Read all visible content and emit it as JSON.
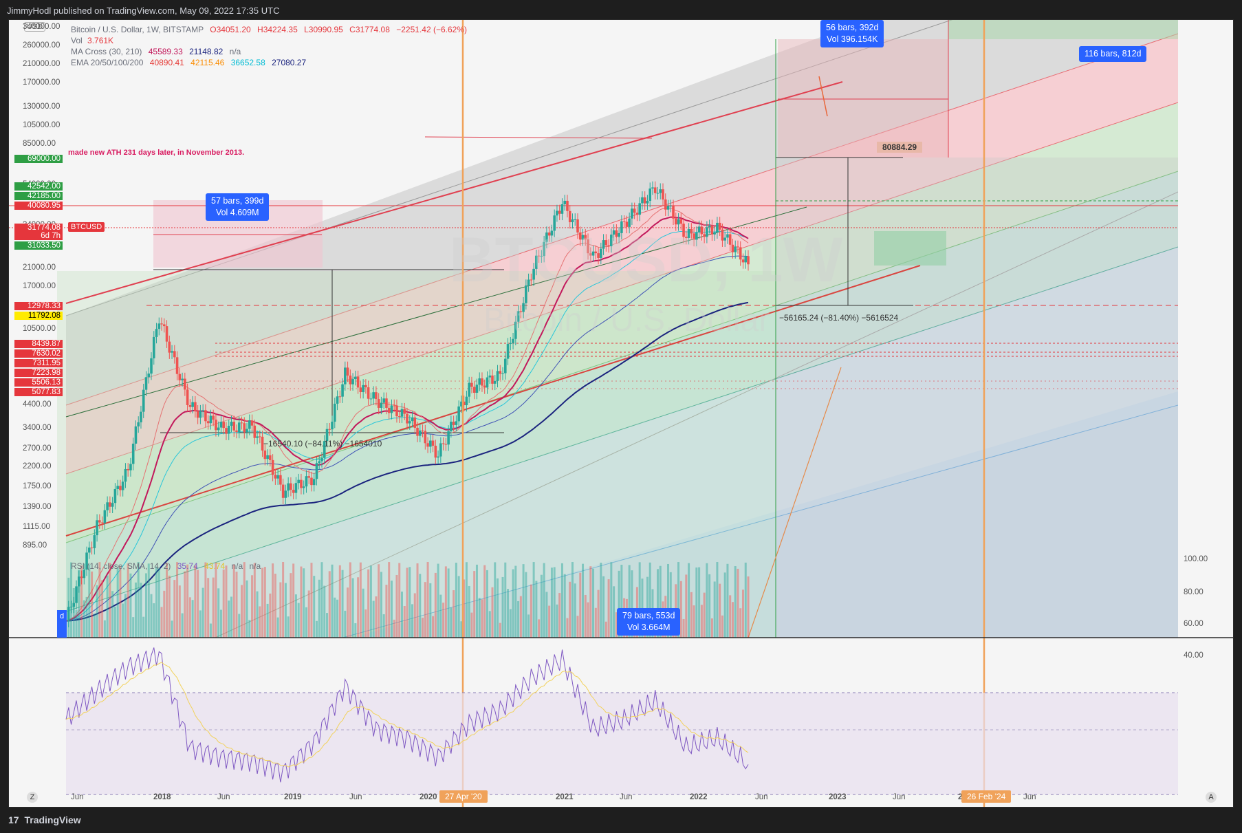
{
  "header": {
    "publisher": "JimmyHodl published on TradingView.com, May 09, 2022 17:35 UTC"
  },
  "footer": {
    "brand": "TradingView",
    "logo": "17"
  },
  "legend": {
    "symbol": "Bitcoin / U.S. Dollar, 1W, BITSTAMP",
    "open": "O34051.20",
    "high": "H34224.35",
    "low": "L30990.95",
    "close": "C31774.08",
    "change": "−2251.42 (−6.62%)",
    "vol_label": "Vol",
    "vol_value": "3.761K",
    "ma_label": "MA Cross (30, 210)",
    "ma_v1": "45589.33",
    "ma_v2": "21148.82",
    "ma_v3": "n/a",
    "ema_label": "EMA 20/50/100/200",
    "ema_v1": "40890.41",
    "ema_v2": "42115.46",
    "ema_v3": "36652.58",
    "ema_v4": "27080.27",
    "rsi_label": "RSI (14, close, SMA, 14, 2)",
    "rsi_v1": "35.74",
    "rsi_v2": "43.74",
    "rsi_v3": "n/a",
    "rsi_v4": "n/a"
  },
  "watermark": {
    "ticker": "BTCUSD, 1W",
    "name": "Bitcoin / U.S. Dollar"
  },
  "currency": "USD",
  "price_axis": [
    "340000.00",
    "260000.00",
    "210000.00",
    "170000.00",
    "130000.00",
    "105000.00",
    "85000.00",
    "54000.00",
    "34000.00",
    "21000.00",
    "17000.00",
    "10500.00",
    "4400.00",
    "3400.00",
    "2700.00",
    "2200.00",
    "1750.00",
    "1390.00",
    "1115.00",
    "895.00"
  ],
  "price_tags": [
    {
      "text": "69000.00",
      "color": "#2e9e44"
    },
    {
      "text": "42542.00",
      "color": "#2e9e44"
    },
    {
      "text": "42185.00",
      "color": "#2e9e44"
    },
    {
      "text": "40080.95",
      "color": "#e5363c"
    },
    {
      "text": "31774.08",
      "color": "#e5363c"
    },
    {
      "text": "6d 7h",
      "color": "#e5363c"
    },
    {
      "text": "31033.50",
      "color": "#2e9e44"
    },
    {
      "text": "12978.33",
      "color": "#e5363c"
    },
    {
      "text": "11792.08",
      "color": "#ffeb00"
    },
    {
      "text": "8439.87",
      "color": "#e5363c"
    },
    {
      "text": "7630.02",
      "color": "#e5363c"
    },
    {
      "text": "7311.95",
      "color": "#e5363c"
    },
    {
      "text": "7223.98",
      "color": "#e5363c"
    },
    {
      "text": "5506.13",
      "color": "#e5363c"
    },
    {
      "text": "5077.83",
      "color": "#e5363c"
    }
  ],
  "symbol_tag": "BTCUSD",
  "rsi_axis": [
    "100.00",
    "80.00",
    "60.00",
    "40.00"
  ],
  "time_axis": [
    "Jun",
    "2018",
    "Jun",
    "2019",
    "Jun",
    "2020",
    "2021",
    "Jun",
    "2022",
    "Jun",
    "2023",
    "Jun",
    "202",
    "Jun"
  ],
  "time_markers": [
    {
      "text": "27 Apr '20"
    },
    {
      "text": "26 Feb '24"
    }
  ],
  "annotations": {
    "ath_note": "made new ATH 231 days later, in November 2013.",
    "box1_bars": "57 bars, 399d",
    "box1_vol": "Vol 4.609M",
    "box2_bars": "56 bars, 392d",
    "box2_vol": "Vol 396.154K",
    "box3_bars": "116 bars, 812d",
    "box4_bars": "79 bars, 553d",
    "box4_vol": "Vol 3.664M",
    "target": "80884.29",
    "drop1": "−16540.10 (−84.11%) −1654010",
    "drop2": "−56165.24 (−81.40%) −5616524",
    "left_badge": "d"
  },
  "corner_left": "Z",
  "corner_right": "A",
  "chart_data": {
    "type": "line",
    "title": "",
    "xlabel": "",
    "ylabel": "",
    "scale": "log",
    "ylim": [
      850,
      340000
    ],
    "x": [
      "2017-03",
      "2017-06",
      "2017-09",
      "2017-12",
      "2018-03",
      "2018-06",
      "2018-09",
      "2018-12",
      "2019-03",
      "2019-06",
      "2019-09",
      "2019-12",
      "2020-03",
      "2020-06",
      "2020-09",
      "2020-12",
      "2021-03",
      "2021-06",
      "2021-09",
      "2021-11",
      "2022-01",
      "2022-03",
      "2022-05"
    ],
    "series": [
      {
        "values": [
          1000,
          2500,
          4300,
          19000,
          8000,
          6500,
          6600,
          3500,
          4000,
          11000,
          8500,
          7200,
          5000,
          9500,
          10800,
          29000,
          58000,
          34000,
          47000,
          67000,
          42000,
          45000,
          31774
        ]
      }
    ],
    "rsi_series": {
      "values": [
        60,
        75,
        88,
        95,
        45,
        40,
        38,
        32,
        48,
        78,
        55,
        50,
        40,
        58,
        65,
        82,
        92,
        55,
        60,
        70,
        45,
        50,
        36
      ],
      "ylim": [
        20,
        100
      ]
    },
    "grid": false,
    "legend": "top-left"
  }
}
